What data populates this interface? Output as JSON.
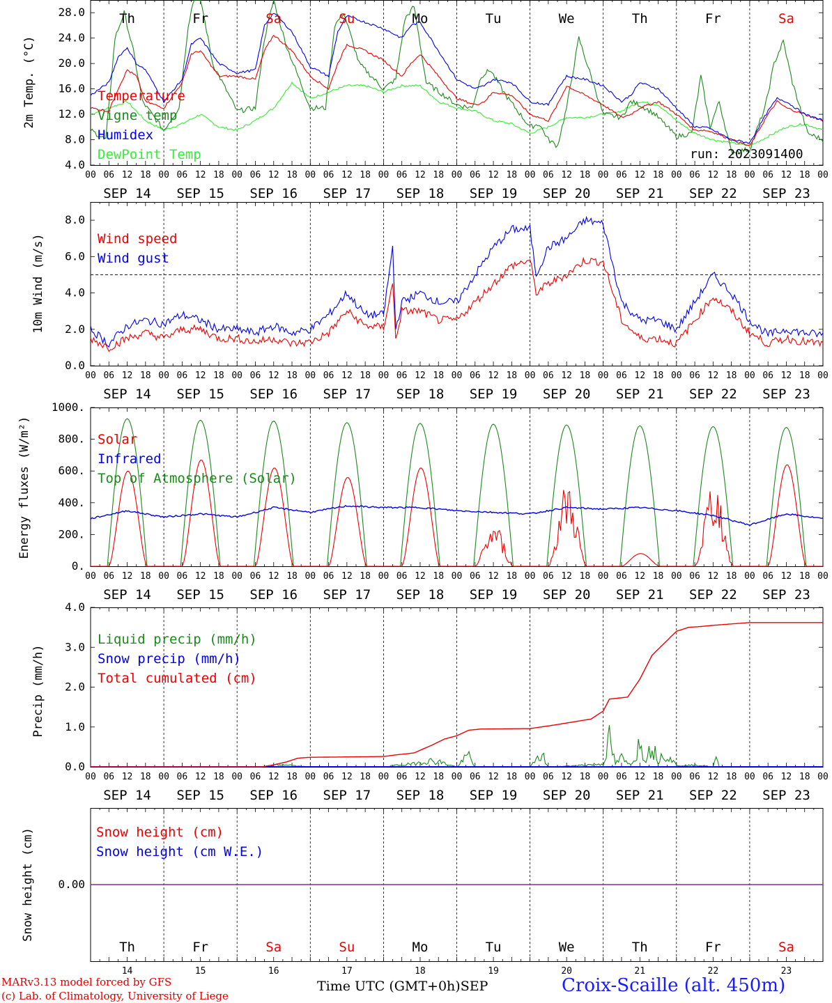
{
  "run_label": "run: 2023091400",
  "footer": {
    "model": "MARv3.13 model forced by GFS",
    "copyright": "(c) Lab. of Climatology, University of Liege",
    "xlabel": "Time UTC (GMT+0h)",
    "month": "SEP",
    "station": "Croix-Scaille (alt. 450m)"
  },
  "days": [
    {
      "dow": "Th",
      "date": "SEP 14",
      "num": "14",
      "weekend": false
    },
    {
      "dow": "Fr",
      "date": "SEP 15",
      "num": "15",
      "weekend": false
    },
    {
      "dow": "Sa",
      "date": "SEP 16",
      "num": "16",
      "weekend": true
    },
    {
      "dow": "Su",
      "date": "SEP 17",
      "num": "17",
      "weekend": true
    },
    {
      "dow": "Mo",
      "date": "SEP 18",
      "num": "18",
      "weekend": false
    },
    {
      "dow": "Tu",
      "date": "SEP 19",
      "num": "19",
      "weekend": false
    },
    {
      "dow": "We",
      "date": "SEP 20",
      "num": "20",
      "weekend": false
    },
    {
      "dow": "Th",
      "date": "SEP 21",
      "num": "21",
      "weekend": false
    },
    {
      "dow": "Fr",
      "date": "SEP 22",
      "num": "22",
      "weekend": false
    },
    {
      "dow": "Sa",
      "date": "SEP 23",
      "num": "23",
      "weekend": true
    }
  ],
  "hour_ticks": [
    "00",
    "06",
    "12",
    "18"
  ],
  "colors": {
    "red": "#ee0000",
    "blue": "#0000ee",
    "green": "#1a8a1a",
    "lightgreen": "#33ee33",
    "purple": "#7b2fa0",
    "weekend": "#ee0000"
  },
  "chart_data": [
    {
      "type": "line",
      "ylabel": "2m Temp. (°C)",
      "ylim": [
        4,
        30
      ],
      "yticks": [
        "4.0",
        "8.0",
        "12.0",
        "16.0",
        "20.0",
        "24.0",
        "28.0"
      ],
      "x_unit": "hours since SEP 14 00 UTC",
      "series": [
        {
          "name": "Temperature",
          "color": "red",
          "x": [
            0,
            6,
            9,
            12,
            15,
            18,
            24,
            30,
            33,
            36,
            42,
            48,
            54,
            57,
            60,
            66,
            72,
            78,
            81,
            84,
            90,
            96,
            102,
            105,
            108,
            114,
            120,
            126,
            129,
            132,
            138,
            144,
            150,
            153,
            156,
            162,
            168,
            174,
            177,
            180,
            186,
            192,
            198,
            201,
            204,
            210,
            216,
            222,
            225,
            228,
            234,
            240
          ],
          "y": [
            13,
            12.5,
            16,
            19,
            18,
            14,
            13,
            17,
            21.5,
            22,
            18,
            18,
            17.5,
            22,
            24.5,
            22,
            18,
            16,
            20,
            23,
            22,
            20.5,
            18,
            20,
            21.5,
            18,
            14.5,
            13.5,
            14,
            15.5,
            15,
            12,
            11,
            13.5,
            16.5,
            15,
            13.5,
            11.5,
            12,
            13,
            14,
            12,
            9.5,
            9.5,
            9.2,
            8,
            7,
            12,
            14,
            13,
            12,
            11
          ]
        },
        {
          "name": "Vigne temp",
          "color": "green",
          "x": [
            0,
            5,
            8,
            11,
            14,
            17,
            24,
            29,
            32,
            35,
            40,
            48,
            54,
            57,
            60,
            64,
            72,
            77,
            80,
            83,
            88,
            96,
            100,
            103,
            106,
            110,
            120,
            125,
            128,
            131,
            136,
            144,
            147,
            150,
            153,
            156,
            160,
            168,
            174,
            177,
            180,
            185,
            192,
            197,
            200,
            203,
            206,
            210,
            216,
            221,
            224,
            227,
            230,
            235,
            240
          ],
          "y": [
            9.5,
            8,
            24,
            28,
            22,
            14,
            9.5,
            13,
            26,
            33,
            20,
            12.5,
            13,
            24,
            30,
            23,
            13,
            13,
            26,
            28,
            20,
            16,
            17.5,
            27,
            29,
            17,
            13.5,
            13,
            18,
            19,
            15,
            10,
            10.5,
            8,
            7,
            13,
            24,
            12,
            11.5,
            14,
            13.5,
            12,
            8.5,
            9,
            18,
            10,
            14,
            6,
            6.5,
            13,
            20,
            23.5,
            17,
            9,
            8
          ]
        },
        {
          "name": "Humidex",
          "color": "blue",
          "x": [
            0,
            6,
            9,
            12,
            15,
            18,
            24,
            30,
            33,
            36,
            42,
            48,
            54,
            57,
            60,
            66,
            72,
            78,
            81,
            84,
            90,
            96,
            102,
            105,
            108,
            114,
            120,
            126,
            129,
            132,
            138,
            144,
            150,
            153,
            156,
            162,
            168,
            174,
            177,
            180,
            186,
            192,
            198,
            201,
            204,
            210,
            216,
            222,
            225,
            228,
            234,
            240
          ],
          "y": [
            15,
            17,
            21,
            22.5,
            20,
            19,
            14,
            17.5,
            23,
            24,
            20,
            18.5,
            19,
            26,
            28,
            25,
            19.5,
            18,
            25,
            27.5,
            26.5,
            25.5,
            24,
            26,
            26.5,
            22,
            17.5,
            16,
            16.5,
            17.5,
            17,
            14,
            13.5,
            16,
            18,
            17.5,
            16.5,
            14,
            15,
            17,
            16,
            13,
            10,
            10,
            9.5,
            8,
            7.5,
            12.5,
            14.5,
            14,
            12,
            11
          ]
        },
        {
          "name": "DewPoint Temp",
          "color": "lightgreen",
          "x": [
            0,
            6,
            12,
            18,
            24,
            30,
            36,
            42,
            48,
            54,
            60,
            66,
            72,
            78,
            84,
            90,
            96,
            102,
            108,
            114,
            120,
            126,
            132,
            138,
            144,
            150,
            156,
            162,
            168,
            174,
            180,
            186,
            192,
            198,
            204,
            210,
            216,
            222,
            228,
            234,
            240
          ],
          "y": [
            12,
            13,
            14,
            11,
            9.5,
            10.5,
            12,
            10,
            9.5,
            11,
            13,
            17,
            14.5,
            15.5,
            16.5,
            16.5,
            15.5,
            16.5,
            16.5,
            14,
            13,
            12.5,
            11,
            10.5,
            9,
            10,
            11.5,
            11.5,
            12,
            12.5,
            14,
            13.5,
            11,
            9,
            8,
            7.5,
            7,
            8.5,
            10,
            10.5,
            9.5
          ]
        }
      ]
    },
    {
      "type": "line",
      "ylabel": "10m Wind (m/s)",
      "ylim": [
        0,
        9
      ],
      "yticks": [
        "0.0",
        "2.0",
        "4.0",
        "6.0",
        "8.0"
      ],
      "reference_line": 5,
      "series": [
        {
          "name": "Wind speed",
          "color": "red",
          "x": [
            0,
            6,
            12,
            18,
            24,
            30,
            36,
            42,
            48,
            54,
            60,
            66,
            72,
            78,
            84,
            90,
            96,
            99,
            100,
            102,
            108,
            114,
            120,
            126,
            132,
            138,
            144,
            146,
            150,
            156,
            162,
            168,
            174,
            180,
            186,
            192,
            198,
            204,
            210,
            216,
            222,
            228,
            234,
            240
          ],
          "y": [
            1.5,
            1.0,
            1.5,
            1.8,
            1.5,
            2.0,
            2.0,
            1.5,
            1.5,
            1.3,
            1.5,
            1.2,
            1.3,
            1.8,
            3.0,
            2.2,
            2.1,
            4.5,
            1.5,
            3.0,
            3.0,
            2.5,
            2.5,
            3.5,
            4.5,
            5.5,
            5.8,
            4.0,
            4.5,
            5.0,
            5.8,
            5.7,
            2.5,
            1.5,
            1.5,
            1.2,
            2.5,
            3.8,
            3.0,
            1.8,
            1.2,
            1.5,
            1.3,
            1.2
          ]
        },
        {
          "name": "Wind gust",
          "color": "blue",
          "x": [
            0,
            6,
            12,
            18,
            24,
            30,
            36,
            42,
            48,
            54,
            60,
            66,
            72,
            78,
            84,
            90,
            96,
            99,
            100,
            102,
            108,
            114,
            120,
            126,
            132,
            138,
            144,
            146,
            150,
            156,
            162,
            168,
            174,
            180,
            186,
            192,
            198,
            204,
            210,
            216,
            222,
            228,
            234,
            240
          ],
          "y": [
            2.0,
            1.2,
            2.2,
            2.5,
            2.3,
            2.8,
            2.5,
            2.0,
            2.0,
            1.8,
            2.2,
            1.8,
            2.0,
            2.8,
            4.0,
            2.8,
            2.8,
            6.5,
            2.0,
            3.5,
            4.0,
            3.5,
            3.5,
            5.0,
            6.5,
            7.5,
            7.5,
            5.0,
            6.5,
            7.0,
            8.0,
            7.8,
            3.5,
            2.5,
            2.5,
            2.0,
            3.5,
            5.0,
            4.0,
            2.5,
            1.7,
            2.0,
            1.8,
            1.7
          ]
        }
      ]
    },
    {
      "type": "line",
      "ylabel": "Energy fluxes (W/m²)",
      "ylim": [
        0,
        1000
      ],
      "yticks": [
        "0.",
        "200.",
        "400.",
        "600.",
        "800.",
        "1000."
      ],
      "series": [
        {
          "name": "Solar",
          "color": "red",
          "peaks": [
            600,
            670,
            620,
            560,
            620,
            280,
            540,
            80,
            560,
            640
          ],
          "peak_hour": 12
        },
        {
          "name": "Infrared",
          "color": "blue",
          "x": [
            0,
            12,
            24,
            36,
            48,
            60,
            72,
            84,
            96,
            108,
            120,
            132,
            144,
            156,
            168,
            180,
            192,
            204,
            216,
            228,
            240
          ],
          "y": [
            300,
            350,
            310,
            330,
            310,
            370,
            340,
            380,
            370,
            370,
            350,
            340,
            330,
            370,
            360,
            370,
            350,
            320,
            260,
            330,
            300
          ]
        },
        {
          "name": "Top of Atmosphere (Solar)",
          "color": "green",
          "peaks": [
            930,
            920,
            915,
            905,
            900,
            895,
            890,
            885,
            880,
            875
          ],
          "peak_hour": 12
        }
      ]
    },
    {
      "type": "line",
      "ylabel": "Precip (mm/h)",
      "ylim": [
        0,
        4
      ],
      "yticks": [
        "0.0",
        "1.0",
        "2.0",
        "3.0",
        "4.0"
      ],
      "series": [
        {
          "name": "Liquid precip (mm/h)",
          "color": "green",
          "x": [
            0,
            56,
            60,
            64,
            68,
            72,
            96,
            100,
            106,
            110,
            114,
            118,
            120,
            124,
            126,
            128,
            144,
            148,
            150,
            152,
            168,
            170,
            172,
            174,
            176,
            178,
            180,
            182,
            184,
            186,
            188,
            190,
            192,
            200,
            204,
            205,
            206,
            240
          ],
          "y": [
            0,
            0,
            0.05,
            0.08,
            0.02,
            0,
            0,
            0.05,
            0.1,
            0.2,
            0.18,
            0.05,
            0,
            0.4,
            0,
            0,
            0,
            0.4,
            0,
            0,
            0.1,
            0.9,
            0.1,
            0.3,
            0.1,
            0.2,
            0.8,
            0.3,
            0.7,
            0.2,
            0.5,
            0.3,
            0.05,
            0.05,
            0,
            0.3,
            0,
            0
          ]
        },
        {
          "name": "Snow precip (mm/h)",
          "color": "blue",
          "x": [
            0,
            240
          ],
          "y": [
            0,
            0
          ]
        },
        {
          "name": "Total cumulated (cm)",
          "color": "red",
          "x": [
            0,
            56,
            60,
            64,
            68,
            72,
            96,
            100,
            106,
            112,
            116,
            120,
            124,
            128,
            144,
            152,
            164,
            168,
            170,
            176,
            180,
            182,
            184,
            188,
            192,
            196,
            200,
            204,
            216,
            240
          ],
          "y": [
            0,
            0,
            0.05,
            0.12,
            0.22,
            0.24,
            0.26,
            0.3,
            0.35,
            0.55,
            0.7,
            0.78,
            0.92,
            0.95,
            0.96,
            1.05,
            1.2,
            1.4,
            1.7,
            1.75,
            2.2,
            2.5,
            2.8,
            3.1,
            3.4,
            3.5,
            3.52,
            3.55,
            3.62,
            3.62
          ]
        }
      ]
    },
    {
      "type": "line",
      "ylabel": "Snow height (cm)",
      "ytick": "0.00",
      "series": [
        {
          "name": "Snow height (cm)",
          "color": "red",
          "x": [
            0,
            240
          ],
          "y": [
            0,
            0
          ]
        },
        {
          "name": "Snow height (cm W.E.)",
          "color": "blue",
          "x": [
            0,
            240
          ],
          "y": [
            0,
            0
          ]
        }
      ]
    }
  ]
}
